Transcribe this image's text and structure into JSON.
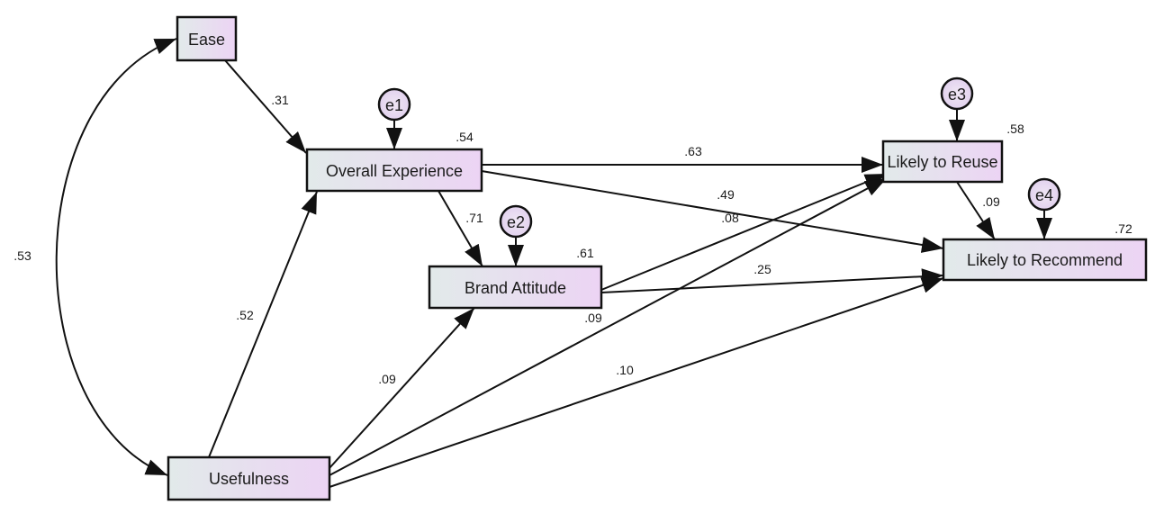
{
  "nodes": {
    "ease": "Ease",
    "overall_experience": "Overall Experience",
    "brand_attitude": "Brand Attitude",
    "usefulness": "Usefulness",
    "likely_to_reuse": "Likely to Reuse",
    "likely_to_recommend": "Likely to Recommend"
  },
  "errors": {
    "e1": "e1",
    "e2": "e2",
    "e3": "e3",
    "e4": "e4"
  },
  "r_squared": {
    "overall_experience": ".54",
    "brand_attitude": ".61",
    "likely_to_reuse": ".58",
    "likely_to_recommend": ".72"
  },
  "paths": {
    "ease_to_oe": ".31",
    "usefulness_to_oe": ".52",
    "oe_to_ba": ".71",
    "oe_to_reuse": ".63",
    "oe_to_recommend": ".49",
    "ba_to_reuse": ".08",
    "ba_to_recommend": ".25",
    "usefulness_to_reuse": ".09",
    "usefulness_to_ba": ".09",
    "usefulness_to_recommend": ".10",
    "reuse_to_recommend": ".09",
    "ease_usefulness_covariance": ".53"
  },
  "colors": {
    "box_left": "#e2eaea",
    "box_right": "#ecd4f4",
    "line": "#111111"
  }
}
